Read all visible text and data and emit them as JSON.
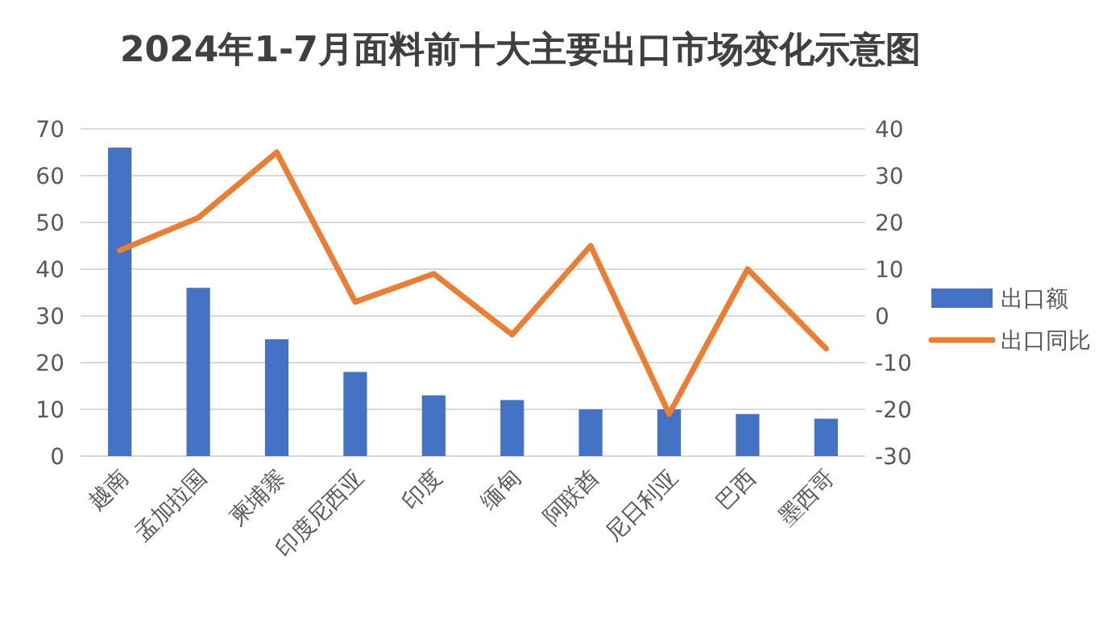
{
  "chart_data": {
    "type": "bar",
    "title": "2024年1-7月面料前十大主要出口市场变化示意图",
    "categories": [
      "越南",
      "孟加拉国",
      "柬埔寨",
      "印度尼西亚",
      "印度",
      "缅甸",
      "阿联酋",
      "尼日利亚",
      "巴西",
      "墨西哥"
    ],
    "series": [
      {
        "name": "出口额",
        "color": "#4472c4",
        "values": [
          66,
          36,
          25,
          18,
          13,
          12,
          10,
          10,
          9,
          8
        ]
      },
      {
        "name": "出口同比",
        "color": "#ed7d31",
        "type": "line",
        "axis": "y2",
        "values": [
          14,
          21,
          35,
          3,
          9,
          -4,
          15,
          -21,
          10,
          -7
        ]
      }
    ],
    "ylim": [
      0,
      70
    ],
    "yticks": [
      0,
      10,
      20,
      30,
      40,
      50,
      60,
      70
    ],
    "y2lim": [
      -30,
      40
    ],
    "y2ticks": [
      -30,
      -20,
      -10,
      0,
      10,
      20,
      30,
      40
    ],
    "grid": "y",
    "legend": "right",
    "marker": "none",
    "line_style": "solid"
  }
}
